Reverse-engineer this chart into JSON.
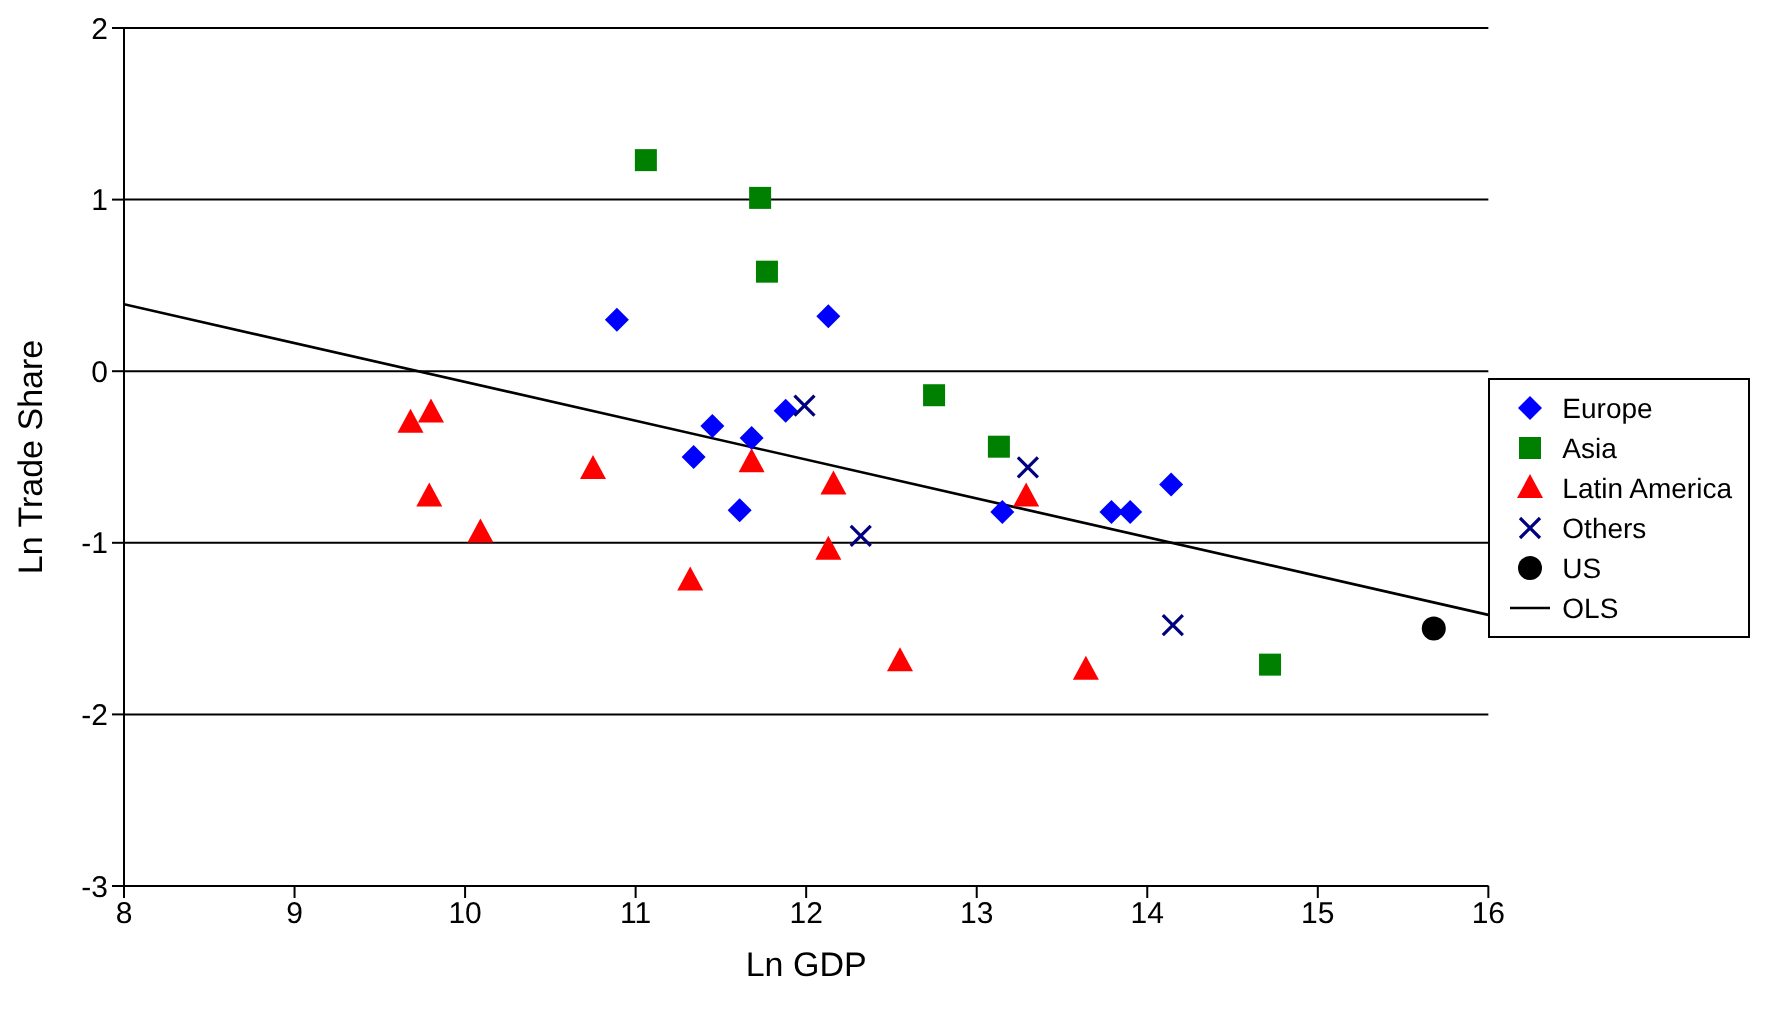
{
  "chart_data": {
    "type": "scatter",
    "xlabel": "Ln GDP",
    "ylabel": "Ln Trade Share",
    "xlim": [
      8,
      16
    ],
    "xticks": [
      8,
      9,
      10,
      11,
      12,
      13,
      14,
      15,
      16
    ],
    "ylim": [
      -3,
      2
    ],
    "yticks": [
      -3,
      -2,
      -1,
      0,
      1,
      2
    ],
    "grid": "y",
    "legend": "right",
    "series": [
      {
        "name": "Europe",
        "color": "#0000ff",
        "marker": "diamond",
        "x": [
          10.89,
          12.13,
          11.45,
          11.34,
          11.68,
          11.88,
          11.61,
          13.15,
          13.79,
          13.9,
          14.14
        ],
        "values": [
          0.3,
          0.32,
          -0.32,
          -0.5,
          -0.39,
          -0.23,
          -0.81,
          -0.82,
          -0.82,
          -0.82,
          -0.66
        ]
      },
      {
        "name": "Asia",
        "color": "#008000",
        "marker": "square",
        "x": [
          11.06,
          11.73,
          11.77,
          12.75,
          13.13,
          14.72
        ],
        "values": [
          1.23,
          1.01,
          0.58,
          -0.14,
          -0.44,
          -1.71
        ]
      },
      {
        "name": "Latin America",
        "color": "#ff0000",
        "marker": "triangle",
        "x": [
          9.68,
          9.8,
          9.79,
          10.09,
          10.75,
          11.32,
          11.68,
          12.16,
          12.13,
          12.55,
          13.29,
          13.64
        ],
        "values": [
          -0.3,
          -0.24,
          -0.73,
          -0.94,
          -0.57,
          -1.22,
          -0.53,
          -0.66,
          -1.04,
          -1.69,
          -0.73,
          -1.74
        ]
      },
      {
        "name": "Others",
        "color": "#000080",
        "marker": "cross",
        "x": [
          11.99,
          12.32,
          13.3,
          14.15
        ],
        "values": [
          -0.2,
          -0.96,
          -0.56,
          -1.48
        ]
      },
      {
        "name": "US",
        "color": "#000000",
        "marker": "circle",
        "x": [
          15.68
        ],
        "values": [
          -1.5
        ]
      },
      {
        "name": "OLS",
        "type": "line",
        "color": "#000000",
        "marker": "none",
        "line_style": "solid",
        "x": [
          8,
          16
        ],
        "values": [
          0.39,
          -1.42
        ]
      }
    ]
  }
}
